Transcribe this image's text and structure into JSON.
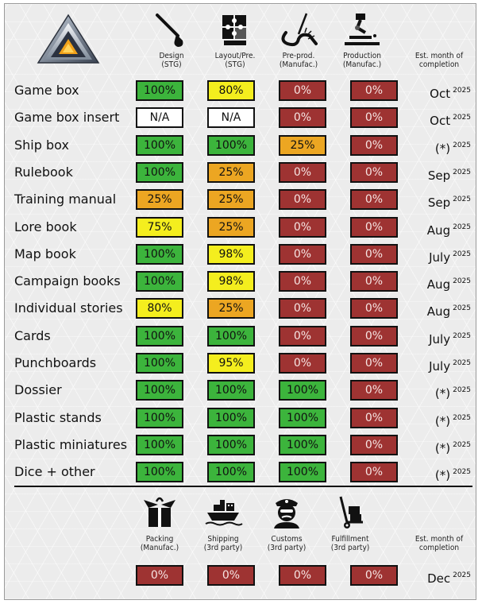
{
  "header": {
    "columns": [
      {
        "label": "Design\n(STG)",
        "icon": "paintbrush-icon"
      },
      {
        "label": "Layout/Pre.\n(STG)",
        "icon": "puzzle-icon"
      },
      {
        "label": "Pre-prod.\n(Manufac.)",
        "icon": "cutting-icon"
      },
      {
        "label": "Production\n(Manufac.)",
        "icon": "robot-arm-icon"
      }
    ],
    "month_label": "Est. month of\ncompletion"
  },
  "rows": [
    {
      "name": "Game box",
      "values": [
        "100%",
        "80%",
        "0%",
        "0%"
      ],
      "month": "Oct",
      "year": "2025"
    },
    {
      "name": "Game box insert",
      "values": [
        "N/A",
        "N/A",
        "0%",
        "0%"
      ],
      "month": "Oct",
      "year": "2025"
    },
    {
      "name": "Ship box",
      "values": [
        "100%",
        "100%",
        "25%",
        "0%"
      ],
      "month": "(*)",
      "year": "2025"
    },
    {
      "name": "Rulebook",
      "values": [
        "100%",
        "25%",
        "0%",
        "0%"
      ],
      "month": "Sep",
      "year": "2025"
    },
    {
      "name": "Training manual",
      "values": [
        "25%",
        "25%",
        "0%",
        "0%"
      ],
      "month": "Sep",
      "year": "2025"
    },
    {
      "name": "Lore book",
      "values": [
        "75%",
        "25%",
        "0%",
        "0%"
      ],
      "month": "Aug",
      "year": "2025"
    },
    {
      "name": "Map book",
      "values": [
        "100%",
        "98%",
        "0%",
        "0%"
      ],
      "month": "July",
      "year": "2025"
    },
    {
      "name": "Campaign books",
      "values": [
        "100%",
        "98%",
        "0%",
        "0%"
      ],
      "month": "Aug",
      "year": "2025"
    },
    {
      "name": "Individual stories",
      "values": [
        "80%",
        "25%",
        "0%",
        "0%"
      ],
      "month": "Aug",
      "year": "2025"
    },
    {
      "name": "Cards",
      "values": [
        "100%",
        "100%",
        "0%",
        "0%"
      ],
      "month": "July",
      "year": "2025"
    },
    {
      "name": "Punchboards",
      "values": [
        "100%",
        "95%",
        "0%",
        "0%"
      ],
      "month": "July",
      "year": "2025"
    },
    {
      "name": "Dossier",
      "values": [
        "100%",
        "100%",
        "100%",
        "0%"
      ],
      "month": "(*)",
      "year": "2025"
    },
    {
      "name": "Plastic stands",
      "values": [
        "100%",
        "100%",
        "100%",
        "0%"
      ],
      "month": "(*)",
      "year": "2025"
    },
    {
      "name": "Plastic miniatures",
      "values": [
        "100%",
        "100%",
        "100%",
        "0%"
      ],
      "month": "(*)",
      "year": "2025"
    },
    {
      "name": "Dice + other",
      "values": [
        "100%",
        "100%",
        "100%",
        "0%"
      ],
      "month": "(*)",
      "year": "2025"
    }
  ],
  "footer": {
    "columns": [
      {
        "label": "Packing\n(Manufac.)",
        "icon": "package-icon"
      },
      {
        "label": "Shipping\n(3rd party)",
        "icon": "cargo-ship-icon"
      },
      {
        "label": "Customs\n(3rd party)",
        "icon": "customs-officer-icon"
      },
      {
        "label": "Fulfillment\n(3rd party)",
        "icon": "hand-truck-icon"
      }
    ],
    "month_label": "Est. month of\ncompletion",
    "values": [
      "0%",
      "0%",
      "0%",
      "0%"
    ],
    "month": "Dec",
    "year": "2025"
  },
  "colors": {
    "complete": "#3cb43c",
    "high": "#f4ee1e",
    "low": "#eca622",
    "none": "#9e3332",
    "na": "#ffffff"
  }
}
